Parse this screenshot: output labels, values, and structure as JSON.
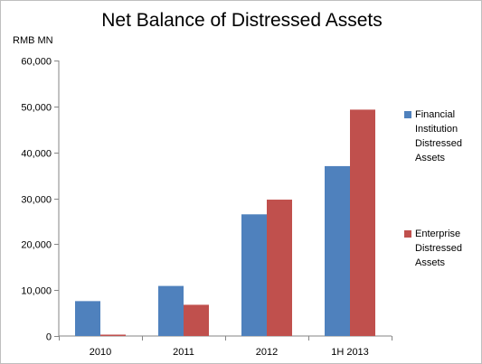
{
  "chart_data": {
    "type": "bar",
    "title": "Net Balance of Distressed Assets",
    "unit_label": "RMB MN",
    "categories": [
      "2010",
      "2011",
      "2012",
      "1H 2013"
    ],
    "series": [
      {
        "name": "Financial Institution Distressed Assets",
        "color": "#4f81bd",
        "values": [
          7600,
          10900,
          26500,
          37000
        ]
      },
      {
        "name": "Enterprise Distressed Assets",
        "color": "#c0504d",
        "values": [
          300,
          6800,
          29700,
          49300
        ]
      }
    ],
    "y_ticks": [
      "0",
      "10,000",
      "20,000",
      "30,000",
      "40,000",
      "50,000",
      "60,000"
    ],
    "ylim": [
      0,
      60000
    ],
    "grid": false,
    "legend": "right"
  }
}
